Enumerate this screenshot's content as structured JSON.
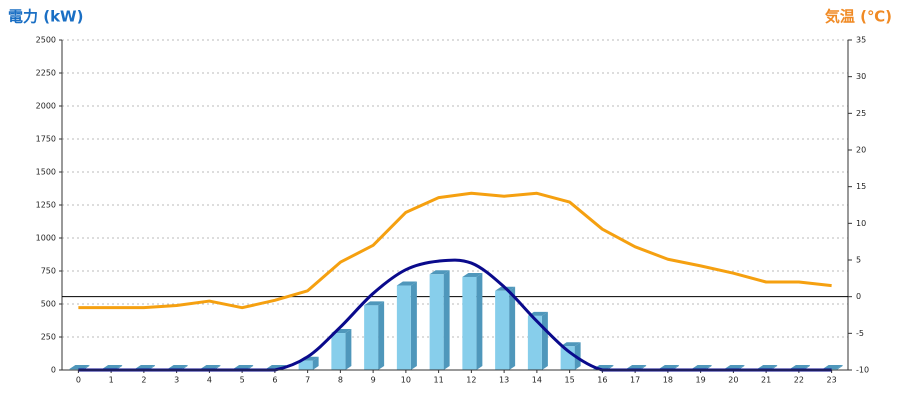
{
  "chart_data": {
    "type": "combo",
    "title_left": "電力 (kW)",
    "title_right": "気温 (℃)",
    "categories": [
      "0",
      "1",
      "2",
      "3",
      "4",
      "5",
      "6",
      "7",
      "8",
      "9",
      "10",
      "11",
      "12",
      "13",
      "14",
      "15",
      "16",
      "17",
      "18",
      "19",
      "20",
      "21",
      "22",
      "23"
    ],
    "ylim": [
      0,
      2500
    ],
    "yticks": [
      0,
      250,
      500,
      750,
      1000,
      1250,
      1500,
      1750,
      2000,
      2250,
      2500
    ],
    "y2lim": [
      -10,
      35
    ],
    "y2ticks": [
      -10,
      -5,
      0,
      5,
      10,
      15,
      20,
      25,
      30,
      35
    ],
    "grid": true,
    "reference_lines": [
      {
        "axis": "y2",
        "value": 0,
        "color": "#000000"
      }
    ],
    "series": [
      {
        "type": "bar",
        "color": "#87ceeb",
        "side_color": "#4f97bb",
        "axis": "y",
        "values": [
          0,
          0,
          0,
          0,
          0,
          0,
          0,
          70,
          280,
          490,
          640,
          725,
          705,
          600,
          410,
          180,
          0,
          0,
          0,
          0,
          0,
          0,
          0,
          0
        ]
      },
      {
        "type": "smooth-line",
        "color": "#0a0a8c",
        "axis": "y",
        "values": [
          0,
          0,
          0,
          0,
          0,
          0,
          0,
          100,
          325,
          580,
          760,
          825,
          810,
          630,
          370,
          135,
          0,
          0,
          0,
          0,
          0,
          0,
          0,
          0
        ]
      },
      {
        "type": "line",
        "color": "#f5a010",
        "axis": "y2",
        "values": [
          -1.5,
          -1.5,
          -1.5,
          -1.2,
          -0.6,
          -1.5,
          -0.5,
          0.8,
          4.7,
          7.0,
          11.5,
          13.5,
          14.1,
          13.7,
          14.1,
          12.9,
          9.2,
          6.8,
          5.1,
          4.2,
          3.2,
          2.0,
          2.0,
          1.5
        ]
      }
    ]
  }
}
